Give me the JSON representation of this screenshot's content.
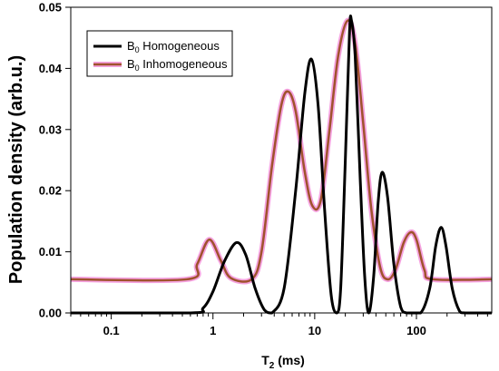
{
  "chart_data": {
    "type": "line",
    "xscale": "log",
    "xlim": [
      0.04,
      550
    ],
    "ylim": [
      0,
      0.05
    ],
    "xlabel": {
      "main": "T",
      "sub": "2",
      "rest": " (ms)"
    },
    "ylabel": "Population density (arb.u.)",
    "x_ticks": [
      {
        "value": 0.1,
        "label": "0.1"
      },
      {
        "value": 1,
        "label": "1"
      },
      {
        "value": 10,
        "label": "10"
      },
      {
        "value": 100,
        "label": "100"
      }
    ],
    "y_ticks": [
      {
        "value": 0,
        "label": "0.00"
      },
      {
        "value": 0.01,
        "label": "0.01"
      },
      {
        "value": 0.02,
        "label": "0.02"
      },
      {
        "value": 0.03,
        "label": "0.03"
      },
      {
        "value": 0.04,
        "label": "0.04"
      },
      {
        "value": 0.05,
        "label": "0.05"
      }
    ],
    "grid": false,
    "legend_position": "top-left",
    "series": [
      {
        "legend": {
          "main": "B",
          "sub": "0",
          "rest": " Homogeneous"
        },
        "color": "#000000",
        "points": [
          [
            0.04,
            0
          ],
          [
            0.6,
            0
          ],
          [
            0.8,
            0.0008
          ],
          [
            1.0,
            0.0035
          ],
          [
            1.3,
            0.0085
          ],
          [
            1.7,
            0.0115
          ],
          [
            2.1,
            0.0095
          ],
          [
            2.6,
            0.004
          ],
          [
            3.2,
            0.0005
          ],
          [
            3.8,
            0
          ],
          [
            5.0,
            0.004
          ],
          [
            6.5,
            0.02
          ],
          [
            8.0,
            0.036
          ],
          [
            9.3,
            0.0415
          ],
          [
            10.8,
            0.034
          ],
          [
            12.5,
            0.017
          ],
          [
            14.5,
            0.003
          ],
          [
            16.5,
            0
          ],
          [
            18,
            0.004
          ],
          [
            20,
            0.025
          ],
          [
            22,
            0.046
          ],
          [
            23,
            0.0478
          ],
          [
            25,
            0.042
          ],
          [
            28,
            0.022
          ],
          [
            31,
            0.006
          ],
          [
            34,
            0
          ],
          [
            38,
            0.006
          ],
          [
            42,
            0.018
          ],
          [
            46,
            0.023
          ],
          [
            52,
            0.019
          ],
          [
            60,
            0.008
          ],
          [
            70,
            0.001
          ],
          [
            80,
            0
          ],
          [
            110,
            0
          ],
          [
            135,
            0.004
          ],
          [
            155,
            0.011
          ],
          [
            175,
            0.014
          ],
          [
            195,
            0.011
          ],
          [
            225,
            0.004
          ],
          [
            265,
            0.0003
          ],
          [
            300,
            0
          ],
          [
            550,
            0
          ]
        ]
      },
      {
        "legend": {
          "main": "B",
          "sub": "0",
          "rest": " Inhomogeneous"
        },
        "color": "#a0522d",
        "glow": "#f5a3e0",
        "points": [
          [
            0.04,
            0.0055
          ],
          [
            0.55,
            0.0055
          ],
          [
            0.7,
            0.008
          ],
          [
            0.92,
            0.012
          ],
          [
            1.2,
            0.0085
          ],
          [
            1.5,
            0.0057
          ],
          [
            2.4,
            0.0055
          ],
          [
            3.0,
            0.01
          ],
          [
            3.8,
            0.024
          ],
          [
            4.7,
            0.034
          ],
          [
            5.5,
            0.0362
          ],
          [
            6.5,
            0.033
          ],
          [
            8.0,
            0.023
          ],
          [
            9.5,
            0.0175
          ],
          [
            11.5,
            0.0185
          ],
          [
            14,
            0.03
          ],
          [
            17,
            0.042
          ],
          [
            21,
            0.0478
          ],
          [
            25,
            0.044
          ],
          [
            30,
            0.031
          ],
          [
            36,
            0.017
          ],
          [
            44,
            0.0075
          ],
          [
            52,
            0.0055
          ],
          [
            62,
            0.007
          ],
          [
            75,
            0.0115
          ],
          [
            88,
            0.0132
          ],
          [
            100,
            0.012
          ],
          [
            120,
            0.007
          ],
          [
            145,
            0.0055
          ],
          [
            550,
            0.0055
          ]
        ]
      }
    ]
  }
}
